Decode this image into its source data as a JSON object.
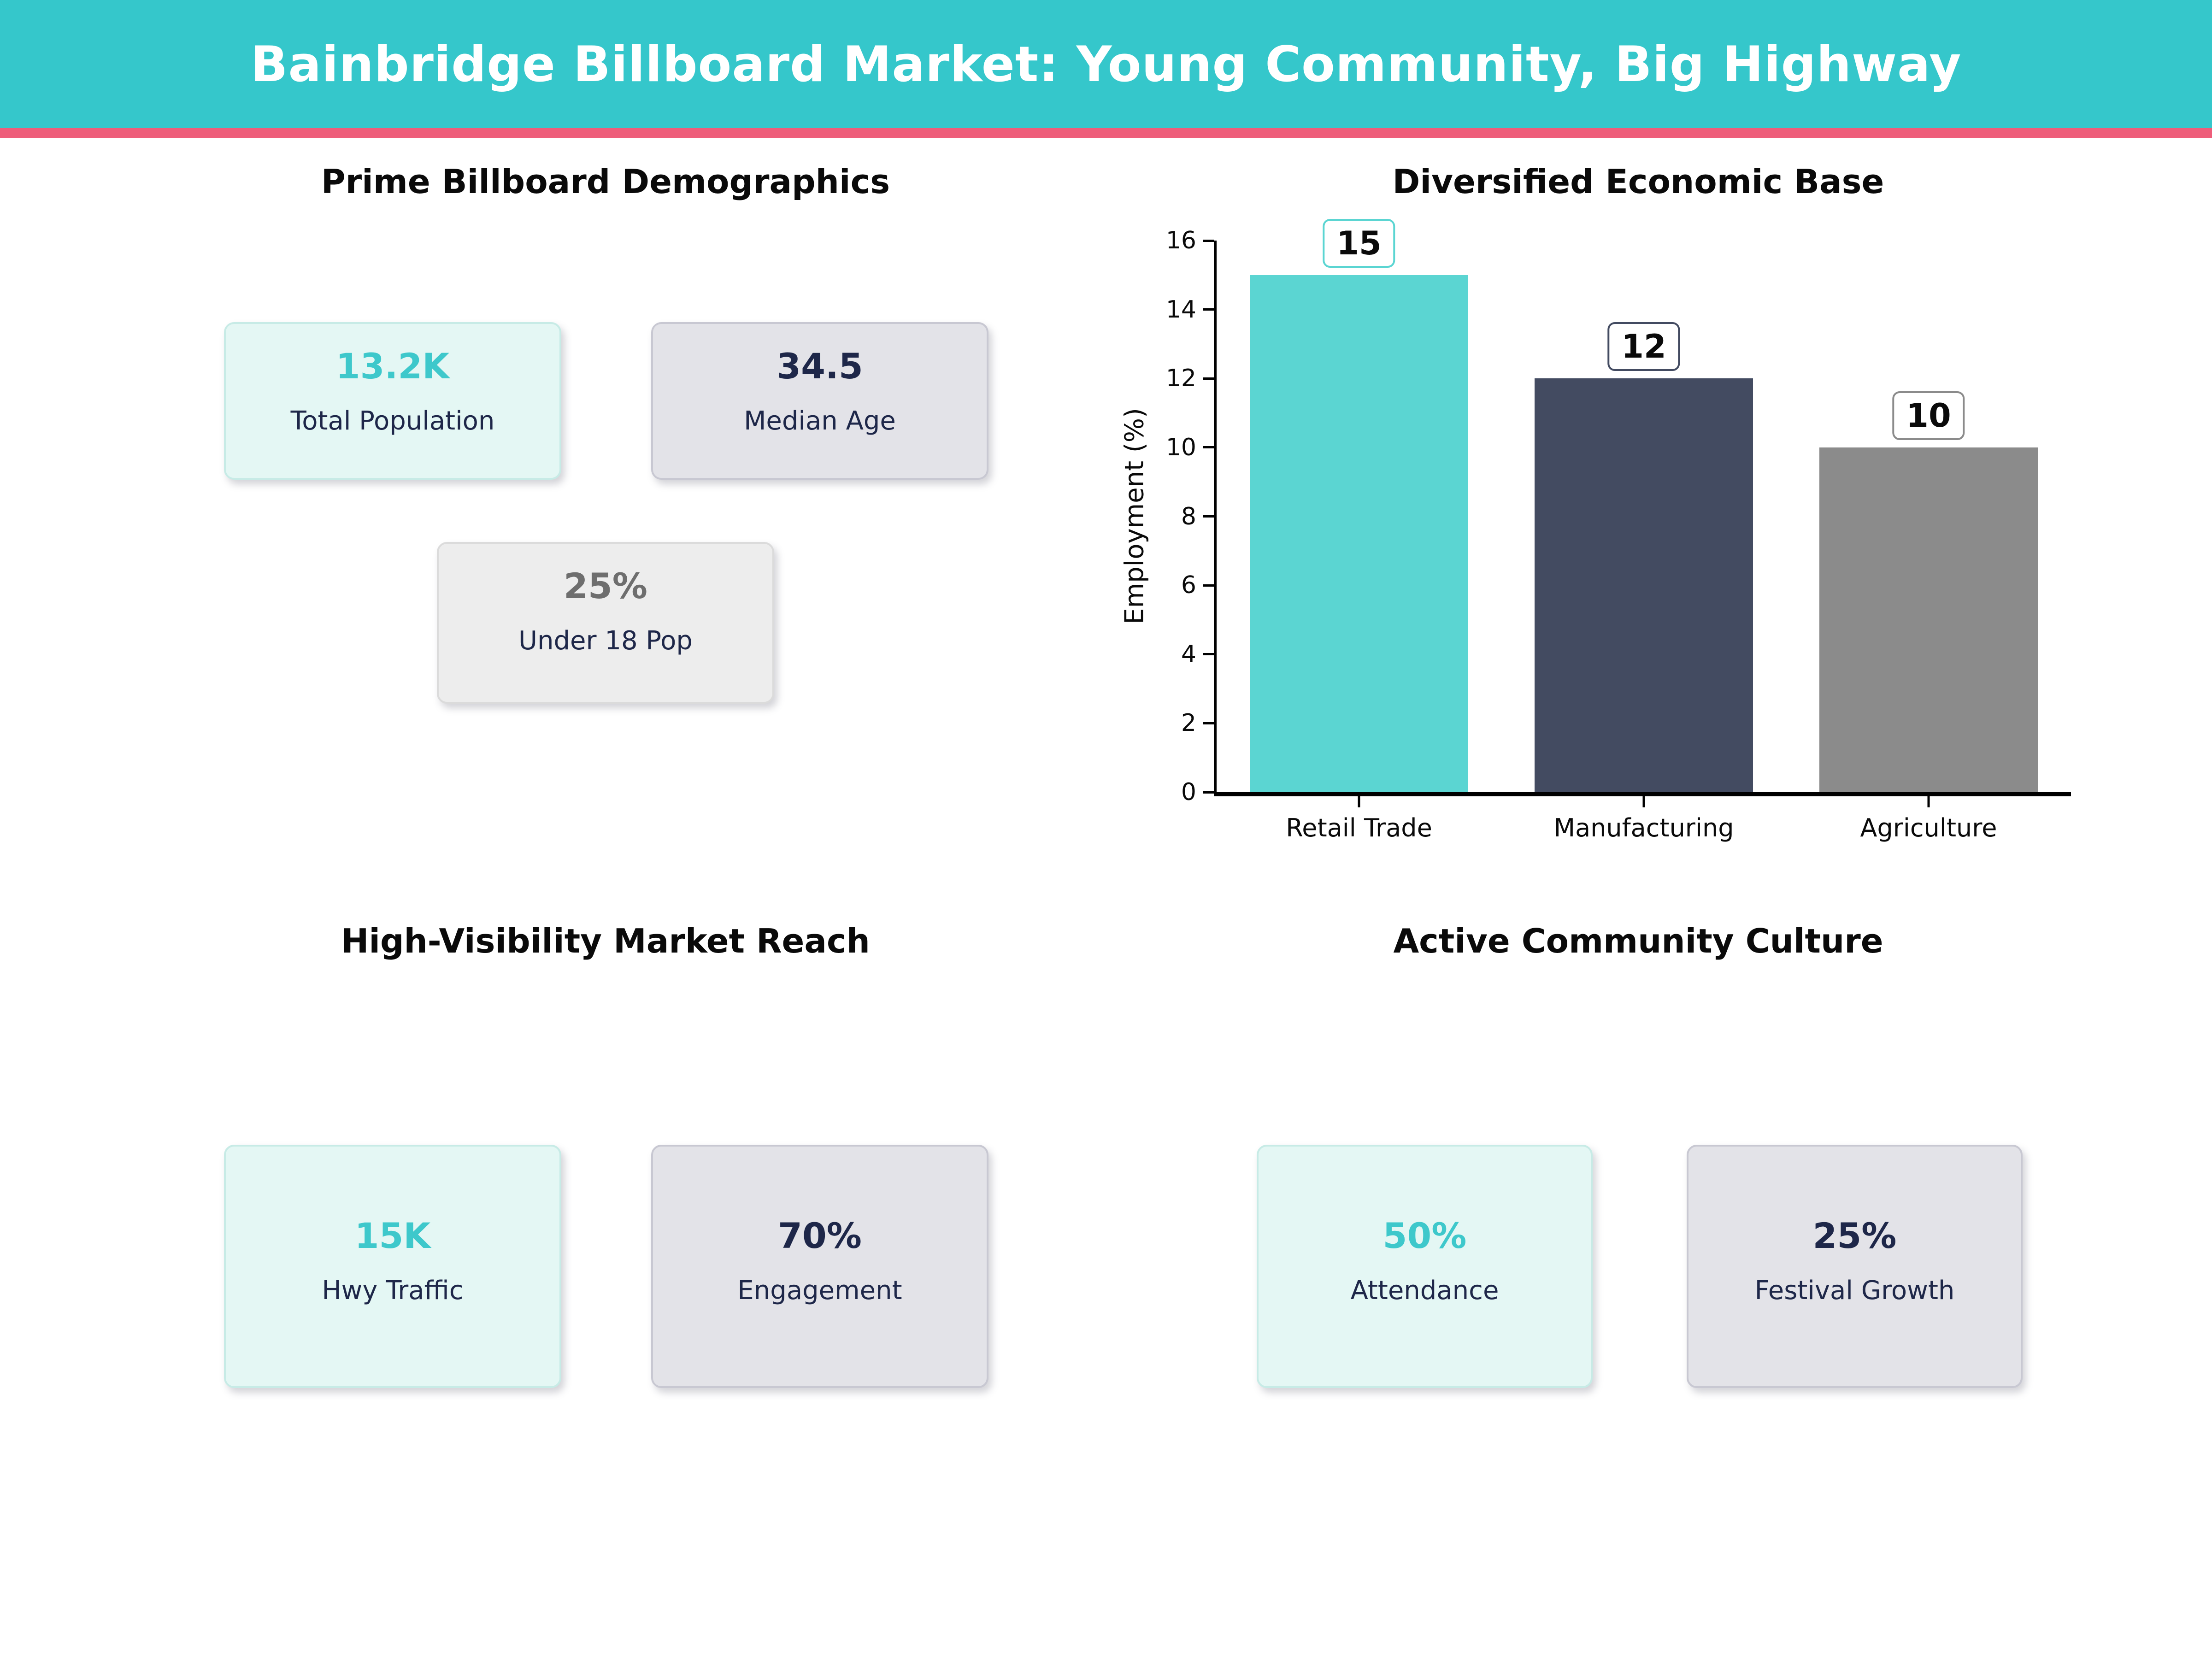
{
  "header": {
    "title": "Bainbridge Billboard Market: Young Community, Big Highway"
  },
  "sections": {
    "demographics": {
      "title": "Prime Billboard Demographics",
      "cards": [
        {
          "value": "13.2K",
          "label": "Total Population"
        },
        {
          "value": "34.5",
          "label": "Median Age"
        },
        {
          "value": "25%",
          "label": "Under 18 Pop"
        }
      ]
    },
    "market_reach": {
      "title": "High-Visibility Market Reach",
      "cards": [
        {
          "value": "15K",
          "label": "Hwy Traffic"
        },
        {
          "value": "70%",
          "label": "Engagement"
        }
      ]
    },
    "culture": {
      "title": "Active Community Culture",
      "cards": [
        {
          "value": "50%",
          "label": "Attendance"
        },
        {
          "value": "25%",
          "label": "Festival Growth"
        }
      ]
    }
  },
  "chart_data": {
    "type": "bar",
    "title": "Diversified Economic Base",
    "categories": [
      "Retail Trade",
      "Manufacturing",
      "Agriculture"
    ],
    "values": [
      15,
      12,
      10
    ],
    "bar_colors": [
      "#5BD5D2",
      "#434B61",
      "#8B8B8B"
    ],
    "value_labels": [
      "15",
      "12",
      "10"
    ],
    "xlabel": "",
    "ylabel": "Employment (%)",
    "ylim": [
      0,
      16
    ],
    "yticks": [
      0,
      2,
      4,
      6,
      8,
      10,
      12,
      14,
      16
    ],
    "grid": false,
    "legend": null
  },
  "colors": {
    "header_bg": "#35C7CB",
    "accent_stripe": "#EE5D7A",
    "teal_accent": "#3EC8CB",
    "navy_text": "#1E2749",
    "gray_value": "#6E6E6E",
    "mint_card_bg": "#E4F7F4",
    "mint_card_border": "#C7EBE6",
    "slate_card_bg": "#E3E3E8",
    "slate_card_border": "#C8C8D2",
    "light_card_bg": "#EDEDED",
    "light_card_border": "#DBDBDB",
    "axis_color": "#000000"
  }
}
